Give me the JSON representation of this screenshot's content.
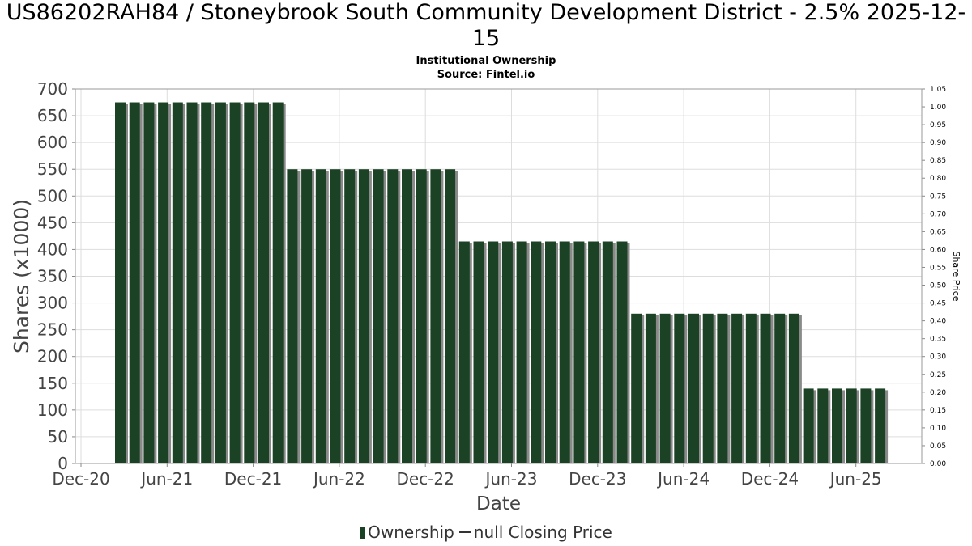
{
  "chart_data": {
    "type": "bar",
    "title": "US86202RAH84 / Stoneybrook South Community Development District - 2.5% 2025-12-15",
    "subtitle": "Institutional Ownership",
    "source": "Source: Fintel.io",
    "xlabel": "Date",
    "ylabel": "Shares (x1000)",
    "y2label": "Share Price",
    "ylim": [
      0,
      700
    ],
    "y2lim": [
      0,
      1.05
    ],
    "yticks": [
      "0",
      "50",
      "100",
      "150",
      "200",
      "250",
      "300",
      "350",
      "400",
      "450",
      "500",
      "550",
      "600",
      "650",
      "700"
    ],
    "y2ticks": [
      "0.00",
      "0.05",
      "0.10",
      "0.15",
      "0.20",
      "0.25",
      "0.30",
      "0.35",
      "0.40",
      "0.45",
      "0.50",
      "0.55",
      "0.60",
      "0.65",
      "0.70",
      "0.75",
      "0.80",
      "0.85",
      "0.90",
      "0.95",
      "1.00",
      "1.05"
    ],
    "xticks": [
      "Dec-20",
      "Jun-21",
      "Dec-21",
      "Jun-22",
      "Dec-22",
      "Jun-23",
      "Dec-23",
      "Jun-24",
      "Dec-24",
      "Jun-25"
    ],
    "grid": true,
    "series": [
      {
        "name": "Ownership",
        "color": "#1c4225",
        "values": [
          675,
          675,
          675,
          675,
          675,
          675,
          675,
          675,
          675,
          675,
          675,
          675,
          550,
          550,
          550,
          550,
          550,
          550,
          550,
          550,
          550,
          550,
          550,
          550,
          415,
          415,
          415,
          415,
          415,
          415,
          415,
          415,
          415,
          415,
          415,
          415,
          280,
          280,
          280,
          280,
          280,
          280,
          280,
          280,
          280,
          280,
          280,
          280,
          140,
          140,
          140,
          140,
          140,
          140
        ]
      }
    ],
    "legend": [
      "Ownership",
      "null Closing Price"
    ],
    "legend_position": "bottom"
  }
}
